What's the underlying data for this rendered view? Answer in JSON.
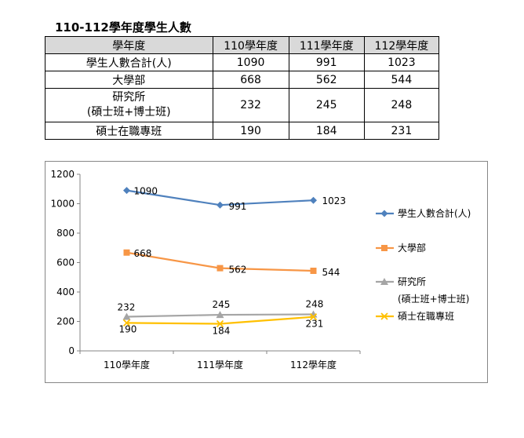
{
  "table": {
    "title": "110-112學年度學生人數",
    "headers": [
      "學年度",
      "110學年度",
      "111學年度",
      "112學年度"
    ],
    "rows": [
      {
        "label": "學生人數合計(人)",
        "values": [
          "1090",
          "991",
          "1023"
        ]
      },
      {
        "label": "大學部",
        "values": [
          "668",
          "562",
          "544"
        ]
      },
      {
        "label_lines": [
          "研究所",
          "(碩士班+博士班)"
        ],
        "values": [
          "232",
          "245",
          "248"
        ]
      },
      {
        "label": "碩士在職專班",
        "values": [
          "190",
          "184",
          "231"
        ]
      }
    ]
  },
  "chart_data": {
    "type": "line",
    "categories": [
      "110學年度",
      "111學年度",
      "112學年度"
    ],
    "ylim": [
      0,
      1200
    ],
    "yticks": [
      0,
      200,
      400,
      600,
      800,
      1000,
      1200
    ],
    "grid": false,
    "legend": "right",
    "series": [
      {
        "name": "學生人數合計(人)",
        "values": [
          1090,
          991,
          1023
        ],
        "color": "#4f81bd",
        "marker": "diamond"
      },
      {
        "name": "大學部",
        "values": [
          668,
          562,
          544
        ],
        "color": "#f79646",
        "marker": "square"
      },
      {
        "name_lines": [
          "研究所",
          "(碩士班+博士班)"
        ],
        "values": [
          232,
          245,
          248
        ],
        "color": "#a5a5a5",
        "marker": "triangle"
      },
      {
        "name": "碩士在職專班",
        "values": [
          190,
          184,
          231
        ],
        "color": "#ffc000",
        "marker": "x"
      }
    ]
  }
}
